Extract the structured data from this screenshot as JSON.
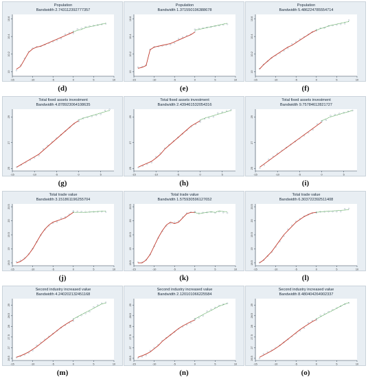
{
  "chart_data": [
    {
      "id": "d",
      "type": "scatter",
      "label": "(d)",
      "title": "Population",
      "subtitle": "Bandwidth 2.743112392777357",
      "xlim": [
        -15,
        10
      ],
      "ylim": [
        9.95,
        10.65
      ],
      "xticks": [
        "-15",
        "-10",
        "-5",
        "0",
        "5",
        "10"
      ],
      "yticks": [
        "10",
        "10.2",
        "10.4",
        "10.6"
      ],
      "cutoff": 0,
      "left": {
        "x": [
          -14,
          -13,
          -12,
          -11,
          -10,
          -9,
          -8,
          -7,
          -6,
          -5,
          -4,
          -3,
          -2,
          -1,
          0
        ],
        "y": [
          10.03,
          10.06,
          10.14,
          10.22,
          10.26,
          10.28,
          10.29,
          10.31,
          10.33,
          10.35,
          10.37,
          10.39,
          10.41,
          10.43,
          10.45
        ]
      },
      "right": {
        "x": [
          0,
          1,
          2,
          3,
          4,
          5,
          6,
          7,
          8
        ],
        "y": [
          10.45,
          10.47,
          10.48,
          10.5,
          10.51,
          10.52,
          10.53,
          10.54,
          10.55
        ]
      }
    },
    {
      "id": "e",
      "type": "scatter",
      "label": "(e)",
      "title": "Population",
      "subtitle": "Bandwidth 1.371550196388678",
      "xlim": [
        -15,
        10
      ],
      "ylim": [
        9.95,
        10.65
      ],
      "xticks": [
        "-15",
        "-10",
        "-5",
        "0",
        "5",
        "10"
      ],
      "yticks": [
        "10",
        "10.2",
        "10.4",
        "10.6"
      ],
      "cutoff": 0,
      "left": {
        "x": [
          -14,
          -13,
          -12,
          -11,
          -10,
          -9,
          -8,
          -7,
          -6,
          -5,
          -4,
          -3,
          -2,
          -1,
          0
        ],
        "y": [
          10.04,
          10.05,
          10.07,
          10.25,
          10.28,
          10.29,
          10.3,
          10.31,
          10.32,
          10.34,
          10.36,
          10.38,
          10.4,
          10.42,
          10.45
        ]
      },
      "right": {
        "x": [
          0,
          1,
          2,
          3,
          4,
          5,
          6,
          7,
          8
        ],
        "y": [
          10.47,
          10.48,
          10.49,
          10.5,
          10.51,
          10.52,
          10.53,
          10.54,
          10.55
        ]
      }
    },
    {
      "id": "f",
      "type": "scatter",
      "label": "(f)",
      "title": "Population",
      "subtitle": "Bandwidth 5.486224785554714",
      "xlim": [
        -15,
        10
      ],
      "ylim": [
        9.95,
        10.65
      ],
      "xticks": [
        "-15",
        "-10",
        "-5",
        "0",
        "5",
        "10"
      ],
      "yticks": [
        "10",
        "10.2",
        "10.4",
        "10.6"
      ],
      "cutoff": 0,
      "left": {
        "x": [
          -14,
          -13,
          -12,
          -11,
          -10,
          -9,
          -8,
          -7,
          -6,
          -5,
          -4,
          -3,
          -2,
          -1,
          0
        ],
        "y": [
          10.03,
          10.08,
          10.12,
          10.16,
          10.19,
          10.22,
          10.25,
          10.28,
          10.3,
          10.33,
          10.36,
          10.39,
          10.42,
          10.45,
          10.47
        ]
      },
      "right": {
        "x": [
          0,
          1,
          2,
          3,
          4,
          5,
          6,
          7,
          8
        ],
        "y": [
          10.47,
          10.49,
          10.5,
          10.52,
          10.53,
          10.54,
          10.55,
          10.56,
          10.57
        ]
      }
    },
    {
      "id": "g",
      "type": "scatter",
      "label": "(g)",
      "title": "Total fixed assets investment",
      "subtitle": "Bandwidth 4.878923064108635",
      "xlim": [
        -15,
        8
      ],
      "ylim": [
        24.8,
        29.6
      ],
      "xticks": [
        "-15",
        "-10",
        "-5",
        "0",
        "5"
      ],
      "yticks": [
        "25",
        "27",
        "29"
      ],
      "cutoff": 0,
      "left": {
        "x": [
          -14,
          -13,
          -12,
          -11,
          -10,
          -9,
          -8,
          -7,
          -6,
          -5,
          -4,
          -3,
          -2,
          -1,
          0
        ],
        "y": [
          25.1,
          25.3,
          25.5,
          25.7,
          25.9,
          26.1,
          26.4,
          26.7,
          27.0,
          27.3,
          27.6,
          27.9,
          28.2,
          28.5,
          28.7
        ]
      },
      "right": {
        "x": [
          0,
          1,
          2,
          3,
          4,
          5,
          6,
          7
        ],
        "y": [
          28.75,
          28.9,
          29.0,
          29.1,
          29.2,
          29.3,
          29.4,
          29.5
        ]
      }
    },
    {
      "id": "h",
      "type": "scatter",
      "label": "(h)",
      "title": "Total fixed assets investment",
      "subtitle": "Bandwidth 2.439461532054316",
      "xlim": [
        -15,
        8
      ],
      "ylim": [
        24.8,
        29.6
      ],
      "xticks": [
        "-15",
        "-10",
        "-5",
        "0",
        "5"
      ],
      "yticks": [
        "25",
        "27",
        "29"
      ],
      "cutoff": 0,
      "left": {
        "x": [
          -14,
          -13,
          -12,
          -11,
          -10,
          -9,
          -8,
          -7,
          -6,
          -5,
          -4,
          -3,
          -2,
          -1,
          0
        ],
        "y": [
          25.1,
          25.25,
          25.4,
          25.55,
          25.8,
          26.1,
          26.5,
          26.8,
          27.1,
          27.4,
          27.7,
          28.0,
          28.3,
          28.5,
          28.7
        ]
      },
      "right": {
        "x": [
          0,
          1,
          2,
          3,
          4,
          5,
          6,
          7
        ],
        "y": [
          28.75,
          28.9,
          29.0,
          29.1,
          29.2,
          29.3,
          29.4,
          29.5
        ]
      }
    },
    {
      "id": "i",
      "type": "scatter",
      "label": "(i)",
      "title": "Total fixed assets investment",
      "subtitle": "Bandwidth 9.75784612821727",
      "xlim": [
        -15,
        8
      ],
      "ylim": [
        24.8,
        29.6
      ],
      "xticks": [
        "-15",
        "-10",
        "-5",
        "0",
        "5"
      ],
      "yticks": [
        "25",
        "27",
        "29"
      ],
      "cutoff": 0,
      "left": {
        "x": [
          -14,
          -13,
          -12,
          -11,
          -10,
          -9,
          -8,
          -7,
          -6,
          -5,
          -4,
          -3,
          -2,
          -1,
          0
        ],
        "y": [
          25.1,
          25.35,
          25.6,
          25.85,
          26.1,
          26.35,
          26.6,
          26.85,
          27.1,
          27.35,
          27.6,
          27.85,
          28.1,
          28.35,
          28.6
        ]
      },
      "right": {
        "x": [
          0,
          1,
          2,
          3,
          4,
          5,
          6,
          7
        ],
        "y": [
          28.7,
          28.85,
          29.0,
          29.1,
          29.2,
          29.3,
          29.4,
          29.5
        ]
      }
    },
    {
      "id": "j",
      "type": "scatter",
      "label": "(j)",
      "title": "Total trade value",
      "subtitle": "Bandwidth 3.151861196255704",
      "xlim": [
        -15,
        10
      ],
      "ylim": [
        18.4,
        20.6
      ],
      "xticks": [
        "-15",
        "-10",
        "-5",
        "0",
        "5",
        "10"
      ],
      "yticks": [
        "18.5",
        "19",
        "19.5",
        "20",
        "20.5"
      ],
      "cutoff": 0,
      "left": {
        "x": [
          -14,
          -13,
          -12,
          -11,
          -10,
          -9,
          -8,
          -7,
          -6,
          -5,
          -4,
          -3,
          -2,
          -1,
          0
        ],
        "y": [
          18.5,
          18.55,
          18.65,
          18.8,
          19.0,
          19.25,
          19.5,
          19.7,
          19.85,
          19.95,
          20.0,
          20.05,
          20.1,
          20.2,
          20.3
        ]
      },
      "right": {
        "x": [
          0,
          1,
          2,
          3,
          4,
          5,
          6,
          7,
          8
        ],
        "y": [
          20.3,
          20.3,
          20.3,
          20.3,
          20.31,
          20.32,
          20.33,
          20.34,
          20.34
        ]
      }
    },
    {
      "id": "k",
      "type": "scatter",
      "label": "(k)",
      "title": "Total trade value",
      "subtitle": "Bandwidth 1.575930596127652",
      "xlim": [
        -15,
        10
      ],
      "ylim": [
        18.4,
        20.6
      ],
      "xticks": [
        "-15",
        "-10",
        "-5",
        "0",
        "5",
        "10"
      ],
      "yticks": [
        "18.5",
        "19",
        "19.5",
        "20",
        "20.5"
      ],
      "cutoff": 0,
      "left": {
        "x": [
          -14,
          -13,
          -12,
          -11,
          -10,
          -9,
          -8,
          -7,
          -6,
          -5,
          -4,
          -3,
          -2,
          -1,
          0
        ],
        "y": [
          18.5,
          18.5,
          18.6,
          18.8,
          19.1,
          19.4,
          19.65,
          19.85,
          19.95,
          19.9,
          19.95,
          20.1,
          20.25,
          20.3,
          20.3
        ]
      },
      "right": {
        "x": [
          0,
          1,
          2,
          3,
          4,
          5,
          6,
          7,
          8
        ],
        "y": [
          20.3,
          20.25,
          20.28,
          20.3,
          20.32,
          20.3,
          20.35,
          20.33,
          20.32
        ]
      }
    },
    {
      "id": "l",
      "type": "scatter",
      "label": "(l)",
      "title": "Total trade value",
      "subtitle": "Bandwidth 6.303722392511408",
      "xlim": [
        -15,
        10
      ],
      "ylim": [
        18.4,
        20.6
      ],
      "xticks": [
        "-15",
        "-10",
        "-5",
        "0",
        "5",
        "10"
      ],
      "yticks": [
        "18.5",
        "19",
        "19.5",
        "20",
        "20.5"
      ],
      "cutoff": 0,
      "left": {
        "x": [
          -14,
          -13,
          -12,
          -11,
          -10,
          -9,
          -8,
          -7,
          -6,
          -5,
          -4,
          -3,
          -2,
          -1,
          0
        ],
        "y": [
          18.5,
          18.6,
          18.75,
          18.9,
          19.1,
          19.3,
          19.5,
          19.65,
          19.8,
          19.95,
          20.05,
          20.15,
          20.22,
          20.28,
          20.3
        ]
      },
      "right": {
        "x": [
          0,
          1,
          2,
          3,
          4,
          5,
          6,
          7,
          8
        ],
        "y": [
          20.3,
          20.32,
          20.33,
          20.34,
          20.35,
          20.36,
          20.37,
          20.38,
          20.4
        ]
      }
    },
    {
      "id": "m",
      "type": "scatter",
      "label": "(m)",
      "title": "Second industry increased value",
      "subtitle": "Bandwidth 4.240202132451168",
      "xlim": [
        -15,
        10
      ],
      "ylim": [
        26.4,
        29.3
      ],
      "xticks": [
        "-15",
        "-10",
        "-5",
        "0",
        "5",
        "10"
      ],
      "yticks": [
        "26.5",
        "27",
        "27.5",
        "28",
        "28.5",
        "29"
      ],
      "cutoff": 0,
      "left": {
        "x": [
          -14,
          -13,
          -12,
          -11,
          -10,
          -9,
          -8,
          -7,
          -6,
          -5,
          -4,
          -3,
          -2,
          -1,
          0
        ],
        "y": [
          26.55,
          26.62,
          26.7,
          26.8,
          26.92,
          27.05,
          27.2,
          27.35,
          27.5,
          27.65,
          27.8,
          27.95,
          28.08,
          28.2,
          28.3
        ]
      },
      "right": {
        "x": [
          0,
          1,
          2,
          3,
          4,
          5,
          6,
          7,
          8
        ],
        "y": [
          28.35,
          28.45,
          28.55,
          28.65,
          28.75,
          28.85,
          28.95,
          29.05,
          29.1
        ]
      }
    },
    {
      "id": "n",
      "type": "scatter",
      "label": "(n)",
      "title": "Second industry increased value",
      "subtitle": "Bandwidth 2.120101066225584",
      "xlim": [
        -15,
        10
      ],
      "ylim": [
        26.4,
        29.3
      ],
      "xticks": [
        "-15",
        "-10",
        "-5",
        "0",
        "5",
        "10"
      ],
      "yticks": [
        "26.5",
        "27",
        "27.5",
        "28",
        "28.5",
        "29"
      ],
      "cutoff": 0,
      "left": {
        "x": [
          -14,
          -13,
          -12,
          -11,
          -10,
          -9,
          -8,
          -7,
          -6,
          -5,
          -4,
          -3,
          -2,
          -1,
          0
        ],
        "y": [
          26.55,
          26.62,
          26.7,
          26.8,
          26.95,
          27.1,
          27.3,
          27.45,
          27.6,
          27.75,
          27.9,
          28.02,
          28.12,
          28.22,
          28.3
        ]
      },
      "right": {
        "x": [
          0,
          1,
          2,
          3,
          4,
          5,
          6,
          7,
          8
        ],
        "y": [
          28.35,
          28.45,
          28.55,
          28.65,
          28.75,
          28.85,
          28.95,
          29.02,
          29.08
        ]
      }
    },
    {
      "id": "o",
      "type": "scatter",
      "label": "(o)",
      "title": "Second industry increased value",
      "subtitle": "Bandwidth 8.480404264902337",
      "xlim": [
        -15,
        10
      ],
      "ylim": [
        26.4,
        29.3
      ],
      "xticks": [
        "-15",
        "-10",
        "-5",
        "0",
        "5",
        "10"
      ],
      "yticks": [
        "26.5",
        "27",
        "27.5",
        "28",
        "28.5",
        "29"
      ],
      "cutoff": 0,
      "left": {
        "x": [
          -14,
          -13,
          -12,
          -11,
          -10,
          -9,
          -8,
          -7,
          -6,
          -5,
          -4,
          -3,
          -2,
          -1,
          0
        ],
        "y": [
          26.55,
          26.65,
          26.75,
          26.85,
          26.97,
          27.1,
          27.25,
          27.4,
          27.55,
          27.7,
          27.85,
          27.98,
          28.1,
          28.22,
          28.32
        ]
      },
      "right": {
        "x": [
          0,
          1,
          2,
          3,
          4,
          5,
          6,
          7,
          8
        ],
        "y": [
          28.35,
          28.45,
          28.55,
          28.65,
          28.75,
          28.85,
          28.95,
          29.05,
          29.12
        ]
      }
    }
  ],
  "colors": {
    "left_fit": "#c0392b",
    "right_fit": "#3c9a3c",
    "points": "#7f95a8",
    "panel_bg": "#e8eef3",
    "axis": "#2c3e50"
  }
}
